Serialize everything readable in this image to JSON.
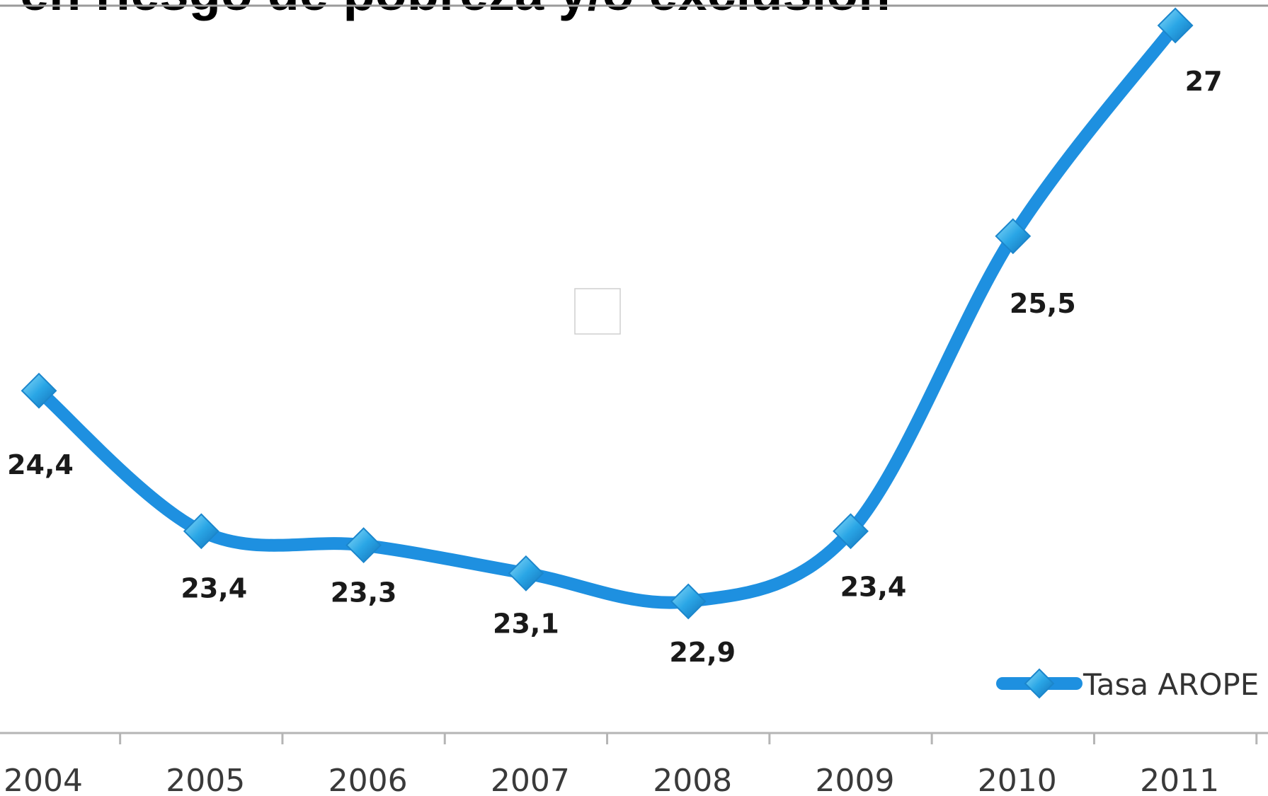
{
  "chart_data": {
    "type": "line",
    "title": "en riesgo de pobreza y/o exclusión",
    "xlabel": "",
    "ylabel": "",
    "categories": [
      "2004",
      "2005",
      "2006",
      "2007",
      "2008",
      "2009",
      "2010",
      "2011"
    ],
    "series": [
      {
        "name": "Tasa AROPE",
        "values": [
          24.4,
          23.4,
          23.3,
          23.1,
          22.9,
          23.4,
          25.5,
          27
        ],
        "labels": [
          "24,4",
          "23,4",
          "23,3",
          "23,1",
          "22,9",
          "23,4",
          "25,5",
          "27"
        ]
      }
    ],
    "legend": "bottom-right",
    "grid": false,
    "line_color": "#1e90e0",
    "marker_color": "#2aa6e6",
    "marker": "diamond"
  }
}
